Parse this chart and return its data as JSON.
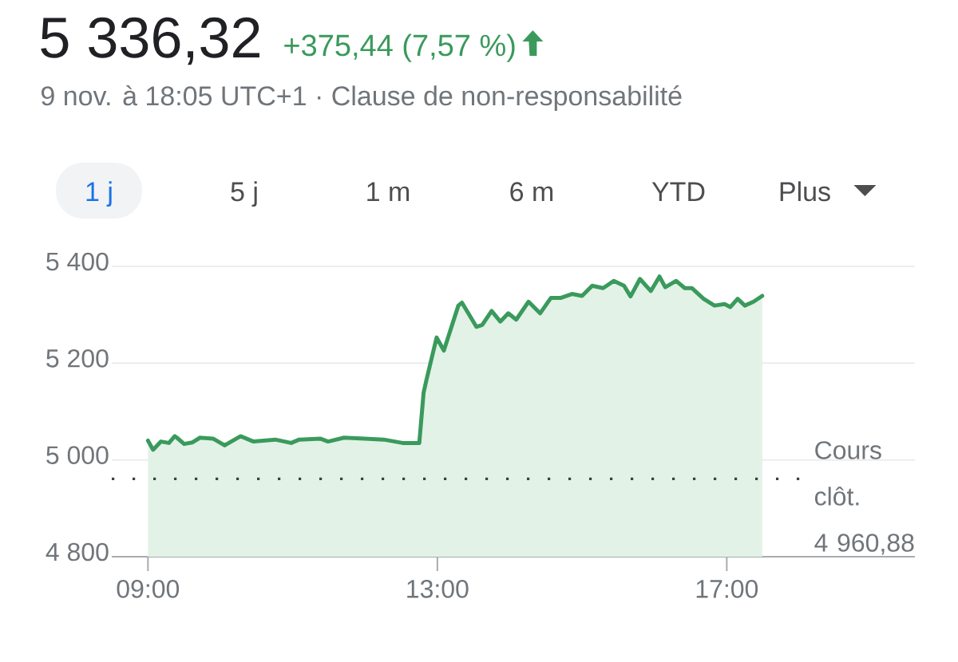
{
  "chart_data": {
    "type": "area",
    "title": "5 336,32",
    "subtitle": "+375,44 (7,57 %)",
    "annotations": [
      "9 nov. à 18:05 UTC+1 · Clause de non-responsabilité",
      "1 j",
      "5 j",
      "1 m",
      "6 m",
      "YTD",
      "Plus"
    ],
    "x": [
      9.0,
      9.07,
      9.18,
      9.29,
      9.37,
      9.4,
      9.5,
      9.61,
      9.72,
      9.9,
      10.06,
      10.28,
      10.46,
      10.76,
      10.98,
      11.09,
      11.38,
      11.49,
      11.71,
      12.0,
      12.26,
      12.52,
      12.75,
      12.81,
      12.85,
      12.99,
      13.09,
      13.29,
      13.34,
      13.54,
      13.62,
      13.75,
      13.87,
      13.98,
      14.09,
      14.26,
      14.42,
      14.57,
      14.71,
      14.86,
      15.0,
      15.14,
      15.29,
      15.44,
      15.58,
      15.67,
      15.8,
      15.95,
      16.07,
      16.15,
      16.3,
      16.42,
      16.52,
      16.68,
      16.83,
      16.97,
      17.05,
      17.15,
      17.25,
      17.37,
      17.49
    ],
    "values": [
      5040,
      5021,
      5038,
      5035,
      5049,
      5046,
      5033,
      5036,
      5046,
      5044,
      5030,
      5049,
      5038,
      5042,
      5035,
      5042,
      5044,
      5038,
      5046,
      5044,
      5042,
      5035,
      5035,
      5139,
      5166,
      5253,
      5226,
      5319,
      5325,
      5275,
      5279,
      5308,
      5286,
      5303,
      5290,
      5327,
      5303,
      5335,
      5335,
      5343,
      5339,
      5360,
      5355,
      5370,
      5360,
      5338,
      5374,
      5349,
      5379,
      5357,
      5370,
      5355,
      5355,
      5333,
      5319,
      5322,
      5316,
      5333,
      5319,
      5327,
      5339
    ],
    "color": "#3a9a5c",
    "xlim": [
      8.5,
      19.6
    ],
    "ylim": [
      4800,
      5400
    ],
    "xticks": [
      {
        "value": 9,
        "label": "09:00"
      },
      {
        "value": 13,
        "label": "13:00"
      },
      {
        "value": 17,
        "label": "17:00"
      }
    ],
    "yticks": [
      {
        "value": 4800,
        "label": "4 800"
      },
      {
        "value": 5000,
        "label": "5 000"
      },
      {
        "value": 5200,
        "label": "5 200"
      },
      {
        "value": 5400,
        "label": "5 400"
      }
    ],
    "grid": "y",
    "ref_lines": [
      {
        "axis": "y",
        "value": 4960.88,
        "label": "Cours clôt. 4 960,88",
        "color": "#3c4043",
        "line_style": "dotted"
      }
    ]
  }
}
